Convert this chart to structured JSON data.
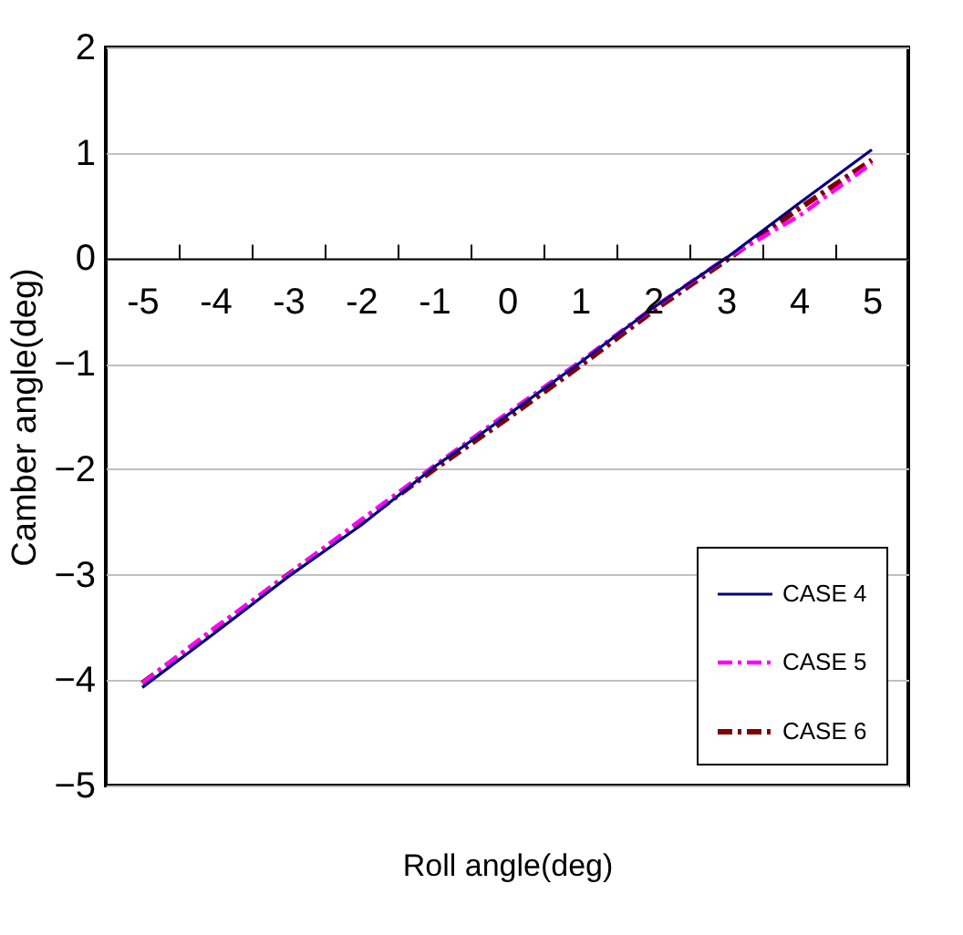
{
  "chart_data": {
    "type": "line",
    "xlabel": "Roll angle(deg)",
    "ylabel": "Camber angle(deg)",
    "categories": [
      "-5",
      "-4",
      "-3",
      "-2",
      "-1",
      "0",
      "1",
      "2",
      "3",
      "4",
      "5"
    ],
    "series": [
      {
        "name": "CASE 4",
        "color": "#000080",
        "line_style": "solid",
        "values": [
          -4.07,
          -3.55,
          -3.02,
          -2.53,
          -1.98,
          -1.49,
          -0.99,
          -0.47,
          0.0,
          0.52,
          1.03
        ]
      },
      {
        "name": "CASE 5",
        "color": "#ff00ff",
        "line_style": "dashed",
        "values": [
          -4.03,
          -3.5,
          -3.0,
          -2.48,
          -1.97,
          -1.47,
          -0.98,
          -0.47,
          0.0,
          0.4,
          0.9
        ]
      },
      {
        "name": "CASE 6",
        "color": "#800000",
        "line_style": "dashed",
        "values": [
          -4.03,
          -3.52,
          -3.0,
          -2.5,
          -2.0,
          -1.52,
          -1.02,
          -0.5,
          -0.02,
          0.47,
          0.93
        ]
      }
    ],
    "ylim": [
      -5,
      2
    ],
    "yticks": [
      -5,
      -4,
      -3,
      -2,
      -1,
      0,
      1,
      2
    ],
    "grid": "y",
    "legend": "bottom right",
    "marker": "none"
  }
}
